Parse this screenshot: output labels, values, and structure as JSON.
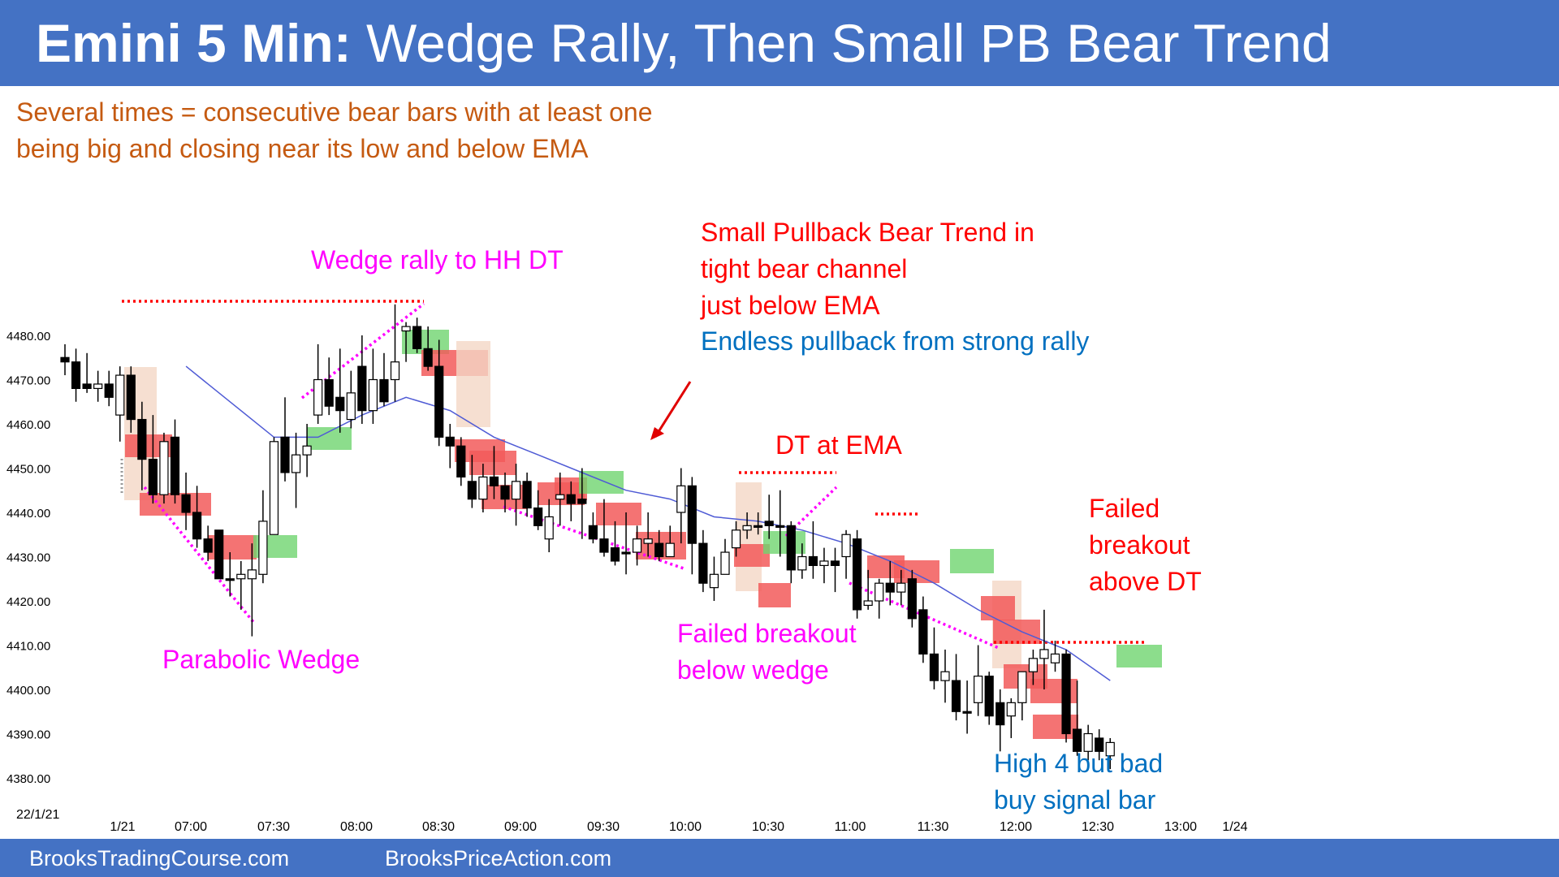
{
  "header": {
    "title_bold": "Emini 5 Min:",
    "title_rest": " Wedge Rally, Then Small PB Bear Trend"
  },
  "subtitle": {
    "line1": "Several times = consecutive bear bars with at least one",
    "line2": "being big and closing near its low and below EMA"
  },
  "annotations": {
    "wedge_rally": "Wedge rally to HH DT",
    "small_pb_1": "Small Pullback Bear Trend in",
    "small_pb_2": "tight bear channel",
    "small_pb_3": "just below EMA",
    "endless": "Endless pullback from strong rally",
    "dt_ema": "DT at EMA",
    "failed_bo_1": "Failed",
    "failed_bo_2": "breakout",
    "failed_bo_3": "above DT",
    "parabolic": "Parabolic Wedge",
    "failed_below_1": "Failed breakout",
    "failed_below_2": "below wedge",
    "high4_1": "High 4 but bad",
    "high4_2": "buy signal bar"
  },
  "footer": {
    "left": "BrooksTradingCourse.com",
    "right": "BrooksPriceAction.com"
  },
  "colors": {
    "header_bg": "#4472c4",
    "bull_highlight": "#6fd46f",
    "bear_highlight": "#f25a5a",
    "ema": "#4f5bd5",
    "annotation_magenta": "#ff00ff",
    "annotation_red": "#ff0000",
    "annotation_blue": "#0070c0",
    "subtitle_orange": "#c55a11"
  },
  "chart_data": {
    "type": "candlestick",
    "date_label": "22/1/21",
    "ylim": [
      4378,
      4488
    ],
    "y_ticks": [
      "4480.00",
      "4470.00",
      "4460.00",
      "4450.00",
      "4440.00",
      "4430.00",
      "4420.00",
      "4410.00",
      "4400.00",
      "4390.00",
      "4380.00"
    ],
    "x_ticks": [
      "1/21",
      "07:00",
      "07:30",
      "08:00",
      "08:30",
      "09:00",
      "09:30",
      "10:00",
      "10:30",
      "11:00",
      "11:30",
      "12:00",
      "12:30",
      "13:00",
      "1/24"
    ],
    "bars": [
      {
        "o": 4475,
        "h": 4478,
        "l": 4471,
        "c": 4474
      },
      {
        "o": 4474,
        "h": 4477,
        "l": 4465,
        "c": 4468
      },
      {
        "o": 4469,
        "h": 4476,
        "l": 4467,
        "c": 4468
      },
      {
        "o": 4468,
        "h": 4472,
        "l": 4465,
        "c": 4469
      },
      {
        "o": 4469,
        "h": 4472,
        "l": 4464,
        "c": 4466
      },
      {
        "o": 4462,
        "h": 4473,
        "l": 4456,
        "c": 4471
      },
      {
        "o": 4471,
        "h": 4473,
        "l": 4458,
        "c": 4461
      },
      {
        "o": 4461,
        "h": 4465,
        "l": 4445,
        "c": 4452
      },
      {
        "o": 4452,
        "h": 4462,
        "l": 4442,
        "c": 4444
      },
      {
        "o": 4444,
        "h": 4458,
        "l": 4442,
        "c": 4456
      },
      {
        "o": 4457,
        "h": 4461,
        "l": 4442,
        "c": 4444
      },
      {
        "o": 4444,
        "h": 4449,
        "l": 4436,
        "c": 4440
      },
      {
        "o": 4440,
        "h": 4446,
        "l": 4432,
        "c": 4434
      },
      {
        "o": 4434,
        "h": 4437,
        "l": 4429,
        "c": 4431
      },
      {
        "o": 4436,
        "h": 4436,
        "l": 4425,
        "c": 4425
      },
      {
        "o": 4425,
        "h": 4431,
        "l": 4421,
        "c": 4425
      },
      {
        "o": 4425,
        "h": 4429,
        "l": 4418,
        "c": 4426
      },
      {
        "o": 4425,
        "h": 4433,
        "l": 4412,
        "c": 4427
      },
      {
        "o": 4426,
        "h": 4445,
        "l": 4424,
        "c": 4438
      },
      {
        "o": 4435,
        "h": 4457,
        "l": 4436,
        "c": 4456
      },
      {
        "o": 4457,
        "h": 4466,
        "l": 4447,
        "c": 4449
      },
      {
        "o": 4449,
        "h": 4458,
        "l": 4441,
        "c": 4453
      },
      {
        "o": 4453,
        "h": 4460,
        "l": 4448,
        "c": 4455
      },
      {
        "o": 4462,
        "h": 4478,
        "l": 4460,
        "c": 4470
      },
      {
        "o": 4470,
        "h": 4475,
        "l": 4462,
        "c": 4464
      },
      {
        "o": 4466,
        "h": 4477,
        "l": 4458,
        "c": 4463
      },
      {
        "o": 4461,
        "h": 4472,
        "l": 4459,
        "c": 4467
      },
      {
        "o": 4473,
        "h": 4480,
        "l": 4460,
        "c": 4463
      },
      {
        "o": 4463,
        "h": 4477,
        "l": 4460,
        "c": 4470
      },
      {
        "o": 4470,
        "h": 4476,
        "l": 4464,
        "c": 4465
      },
      {
        "o": 4470,
        "h": 4487,
        "l": 4465,
        "c": 4474
      },
      {
        "o": 4481,
        "h": 4483,
        "l": 4474,
        "c": 4482
      },
      {
        "o": 4482,
        "h": 4484,
        "l": 4476,
        "c": 4477
      },
      {
        "o": 4477,
        "h": 4482,
        "l": 4472,
        "c": 4473
      },
      {
        "o": 4473,
        "h": 4479,
        "l": 4455,
        "c": 4457
      },
      {
        "o": 4457,
        "h": 4460,
        "l": 4450,
        "c": 4455
      },
      {
        "o": 4455,
        "h": 4457,
        "l": 4446,
        "c": 4448
      },
      {
        "o": 4447,
        "h": 4453,
        "l": 4441,
        "c": 4443
      },
      {
        "o": 4443,
        "h": 4451,
        "l": 4440,
        "c": 4448
      },
      {
        "o": 4448,
        "h": 4455,
        "l": 4443,
        "c": 4446
      },
      {
        "o": 4446,
        "h": 4449,
        "l": 4440,
        "c": 4443
      },
      {
        "o": 4443,
        "h": 4451,
        "l": 4437,
        "c": 4447
      },
      {
        "o": 4447,
        "h": 4449,
        "l": 4439,
        "c": 4441
      },
      {
        "o": 4441,
        "h": 4445,
        "l": 4436,
        "c": 4437
      },
      {
        "o": 4434,
        "h": 4443,
        "l": 4431,
        "c": 4439
      },
      {
        "o": 4443,
        "h": 4449,
        "l": 4437,
        "c": 4444
      },
      {
        "o": 4444,
        "h": 4447,
        "l": 4438,
        "c": 4442
      },
      {
        "o": 4443,
        "h": 4450,
        "l": 4434,
        "c": 4442
      },
      {
        "o": 4437,
        "h": 4440,
        "l": 4433,
        "c": 4434
      },
      {
        "o": 4434,
        "h": 4443,
        "l": 4430,
        "c": 4431
      },
      {
        "o": 4432,
        "h": 4438,
        "l": 4428,
        "c": 4429
      },
      {
        "o": 4431,
        "h": 4440,
        "l": 4426,
        "c": 4431
      },
      {
        "o": 4431,
        "h": 4437,
        "l": 4428,
        "c": 4434
      },
      {
        "o": 4433,
        "h": 4440,
        "l": 4430,
        "c": 4434
      },
      {
        "o": 4433,
        "h": 4436,
        "l": 4429,
        "c": 4430
      },
      {
        "o": 4430,
        "h": 4437,
        "l": 4430,
        "c": 4433
      },
      {
        "o": 4440,
        "h": 4450,
        "l": 4433,
        "c": 4446
      },
      {
        "o": 4446,
        "h": 4448,
        "l": 4426,
        "c": 4433
      },
      {
        "o": 4433,
        "h": 4436,
        "l": 4422,
        "c": 4424
      },
      {
        "o": 4423,
        "h": 4430,
        "l": 4420,
        "c": 4426
      },
      {
        "o": 4426,
        "h": 4434,
        "l": 4426,
        "c": 4431
      },
      {
        "o": 4432,
        "h": 4438,
        "l": 4430,
        "c": 4436
      },
      {
        "o": 4436,
        "h": 4440,
        "l": 4434,
        "c": 4437
      },
      {
        "o": 4437,
        "h": 4440,
        "l": 4435,
        "c": 4437
      },
      {
        "o": 4438,
        "h": 4444,
        "l": 4434,
        "c": 4437
      },
      {
        "o": 4437,
        "h": 4445,
        "l": 4430,
        "c": 4437
      },
      {
        "o": 4437,
        "h": 4438,
        "l": 4424,
        "c": 4427
      },
      {
        "o": 4427,
        "h": 4433,
        "l": 4425,
        "c": 4430
      },
      {
        "o": 4430,
        "h": 4438,
        "l": 4425,
        "c": 4428
      },
      {
        "o": 4428,
        "h": 4432,
        "l": 4424,
        "c": 4429
      },
      {
        "o": 4429,
        "h": 4432,
        "l": 4422,
        "c": 4428
      },
      {
        "o": 4430,
        "h": 4436,
        "l": 4425,
        "c": 4435
      },
      {
        "o": 4434,
        "h": 4436,
        "l": 4416,
        "c": 4418
      },
      {
        "o": 4419,
        "h": 4427,
        "l": 4418,
        "c": 4420
      },
      {
        "o": 4420,
        "h": 4425,
        "l": 4416,
        "c": 4424
      },
      {
        "o": 4424,
        "h": 4429,
        "l": 4419,
        "c": 4422
      },
      {
        "o": 4422,
        "h": 4427,
        "l": 4419,
        "c": 4424
      },
      {
        "o": 4425,
        "h": 4427,
        "l": 4414,
        "c": 4416
      },
      {
        "o": 4418,
        "h": 4421,
        "l": 4406,
        "c": 4408
      },
      {
        "o": 4408,
        "h": 4414,
        "l": 4400,
        "c": 4402
      },
      {
        "o": 4402,
        "h": 4409,
        "l": 4397,
        "c": 4404
      },
      {
        "o": 4402,
        "h": 4408,
        "l": 4393,
        "c": 4395
      },
      {
        "o": 4395,
        "h": 4402,
        "l": 4390,
        "c": 4395
      },
      {
        "o": 4397,
        "h": 4410,
        "l": 4394,
        "c": 4403
      },
      {
        "o": 4403,
        "h": 4404,
        "l": 4392,
        "c": 4394
      },
      {
        "o": 4397,
        "h": 4400,
        "l": 4386,
        "c": 4392
      },
      {
        "o": 4394,
        "h": 4398,
        "l": 4389,
        "c": 4397
      },
      {
        "o": 4397,
        "h": 4404,
        "l": 4393,
        "c": 4404
      },
      {
        "o": 4404,
        "h": 4409,
        "l": 4401,
        "c": 4407
      },
      {
        "o": 4407,
        "h": 4418,
        "l": 4400,
        "c": 4409
      },
      {
        "o": 4406,
        "h": 4411,
        "l": 4404,
        "c": 4408
      },
      {
        "o": 4408,
        "h": 4409,
        "l": 4388,
        "c": 4390
      },
      {
        "o": 4391,
        "h": 4402,
        "l": 4385,
        "c": 4386
      },
      {
        "o": 4386,
        "h": 4392,
        "l": 4384,
        "c": 4390
      },
      {
        "o": 4389,
        "h": 4391,
        "l": 4384,
        "c": 4386
      },
      {
        "o": 4385,
        "h": 4389,
        "l": 4382,
        "c": 4388
      }
    ],
    "ema": [
      [
        11,
        4473
      ],
      [
        15,
        4465
      ],
      [
        19,
        4457
      ],
      [
        23,
        4457
      ],
      [
        27,
        4462
      ],
      [
        31,
        4466
      ],
      [
        35,
        4463
      ],
      [
        39,
        4457
      ],
      [
        43,
        4453
      ],
      [
        47,
        4449
      ],
      [
        51,
        4445
      ],
      [
        55,
        4443
      ],
      [
        59,
        4439
      ],
      [
        63,
        4438
      ],
      [
        67,
        4436
      ],
      [
        71,
        4433
      ],
      [
        75,
        4429
      ],
      [
        79,
        4424
      ],
      [
        83,
        4418
      ],
      [
        87,
        4413
      ],
      [
        91,
        4409
      ],
      [
        95,
        4402
      ]
    ]
  }
}
